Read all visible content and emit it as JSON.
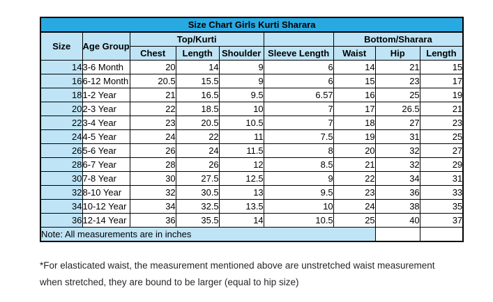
{
  "title": "Size Chart Girls Kurti Sharara",
  "colors": {
    "title_bar_bg": "#29A9E1",
    "title_text": "#1F3864",
    "header_bg": "#BEE4F6",
    "border": "#000000",
    "cell_bg": "#FFFFFF"
  },
  "header": {
    "size": "Size",
    "age_group": "Age Group",
    "top_group": "Top/Kurti",
    "bottom_group": "Bottom/Sharara",
    "sub": [
      "Chest",
      "Length",
      "Shoulder",
      "Sleeve Length",
      "Waist",
      "Hip",
      "Length"
    ]
  },
  "rows": [
    {
      "size": "14",
      "age": "3-6 Month",
      "values": [
        "20",
        "14",
        "9",
        "6",
        "14",
        "21",
        "15"
      ]
    },
    {
      "size": "16",
      "age": "6-12 Month",
      "values": [
        "20.5",
        "15.5",
        "9",
        "6",
        "15",
        "23",
        "17"
      ]
    },
    {
      "size": "18",
      "age": "1-2 Year",
      "values": [
        "21",
        "16.5",
        "9.5",
        "6.57",
        "16",
        "25",
        "19"
      ]
    },
    {
      "size": "20",
      "age": "2-3 Year",
      "values": [
        "22",
        "18.5",
        "10",
        "7",
        "17",
        "26.5",
        "21"
      ]
    },
    {
      "size": "22",
      "age": "3-4 Year",
      "values": [
        "23",
        "20.5",
        "10.5",
        "7",
        "18",
        "27",
        "23"
      ]
    },
    {
      "size": "24",
      "age": "4-5 Year",
      "values": [
        "24",
        "22",
        "11",
        "7.5",
        "19",
        "31",
        "25"
      ]
    },
    {
      "size": "26",
      "age": "5-6 Year",
      "values": [
        "26",
        "24",
        "11.5",
        "8",
        "20",
        "32",
        "27"
      ]
    },
    {
      "size": "28",
      "age": "6-7 Year",
      "values": [
        "28",
        "26",
        "12",
        "8.5",
        "21",
        "32",
        "29"
      ]
    },
    {
      "size": "30",
      "age": "7-8 Year",
      "values": [
        "30",
        "27.5",
        "12.5",
        "9",
        "22",
        "34",
        "31"
      ]
    },
    {
      "size": "32",
      "age": "8-10 Year",
      "values": [
        "32",
        "30.5",
        "13",
        "9.5",
        "23",
        "36",
        "33"
      ]
    },
    {
      "size": "34",
      "age": "10-12 Year",
      "values": [
        "34",
        "32.5",
        "13.5",
        "10",
        "24",
        "38",
        "35"
      ]
    },
    {
      "size": "36",
      "age": "12-14 Year",
      "values": [
        "36",
        "35.5",
        "14",
        "10.5",
        "25",
        "40",
        "37"
      ]
    }
  ],
  "note": "Note: All measurements are in inches",
  "footnote_line1": "*For elasticated waist, the measurement mentioned above are unstretched waist measurement",
  "footnote_line2": "when stretched, they are bound to be larger (equal to hip size)"
}
